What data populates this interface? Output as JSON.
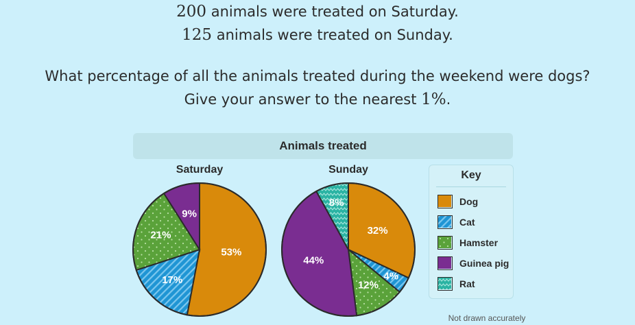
{
  "question": {
    "line1_num": "200",
    "line1_text": " animals were treated on Saturday.",
    "line2_num": "125",
    "line2_text": " animals were treated on Sunday.",
    "line3": "What percentage of all the animals treated during the weekend were dogs?",
    "line4_text": "Give your answer to the nearest ",
    "line4_num": "1%",
    "line4_end": "."
  },
  "chart_title": "Animals treated",
  "note": "Not drawn accurately",
  "key": {
    "title": "Key",
    "items": [
      {
        "label": "Dog",
        "color": "#d98a0b",
        "pattern": "solid"
      },
      {
        "label": "Cat",
        "color": "#1f95d4",
        "pattern": "stripes"
      },
      {
        "label": "Hamster",
        "color": "#5aa23a",
        "pattern": "dots"
      },
      {
        "label": "Guinea pig",
        "color": "#7a2d91",
        "pattern": "solid"
      },
      {
        "label": "Rat",
        "color": "#2ab3a3",
        "pattern": "zigzag"
      }
    ]
  },
  "chart_data": [
    {
      "type": "pie",
      "title": "Saturday",
      "categories": [
        "Dog",
        "Cat",
        "Hamster",
        "Guinea pig"
      ],
      "values": [
        53,
        17,
        21,
        9
      ],
      "labels": [
        "53%",
        "17%",
        "21%",
        "9%"
      ]
    },
    {
      "type": "pie",
      "title": "Sunday",
      "categories": [
        "Dog",
        "Cat",
        "Hamster",
        "Guinea pig",
        "Rat"
      ],
      "values": [
        32,
        4,
        12,
        44,
        8
      ],
      "labels": [
        "32%",
        "4%",
        "12%",
        "44%",
        "8%"
      ]
    }
  ]
}
